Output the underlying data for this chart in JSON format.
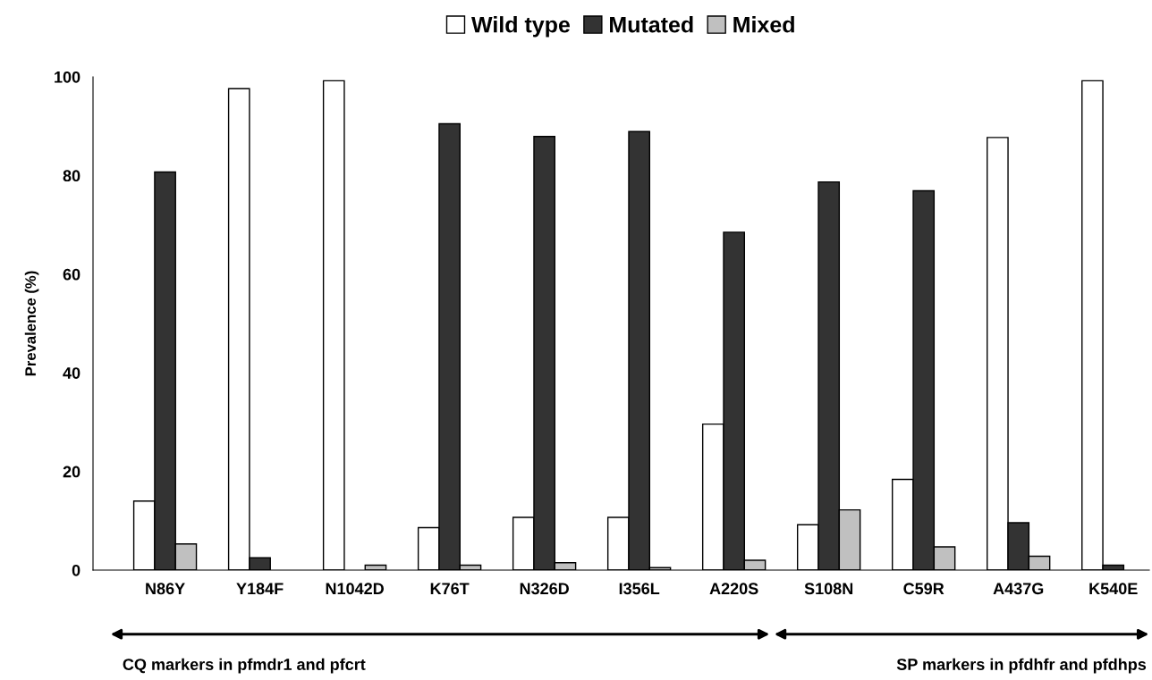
{
  "chart_data": {
    "type": "bar",
    "categories": [
      "N86Y",
      "Y184F",
      "N1042D",
      "K76T",
      "N326D",
      "I356L",
      "A220S",
      "S108N",
      "C59R",
      "A437G",
      "K540E"
    ],
    "series": [
      {
        "name": "Wild type",
        "color": "#ffffff",
        "values": [
          14.0,
          97.6,
          99.2,
          8.6,
          10.7,
          10.7,
          29.6,
          9.2,
          18.4,
          87.7,
          99.2
        ]
      },
      {
        "name": "Mutated",
        "color": "#333333",
        "values": [
          80.7,
          2.5,
          null,
          90.5,
          87.9,
          88.9,
          68.5,
          78.7,
          76.9,
          9.6,
          1.0
        ]
      },
      {
        "name": "Mixed",
        "color": "#c0c0c0",
        "values": [
          5.3,
          null,
          1.0,
          1.0,
          1.5,
          0.5,
          2.0,
          12.2,
          4.7,
          2.8,
          null
        ]
      }
    ],
    "ylabel": "Prevalence (%)",
    "ylim": [
      0,
      100
    ],
    "yticks": [
      0,
      20,
      40,
      60,
      80,
      100
    ],
    "annotations": [
      "CQ markers in pfmdr1 and pfcrt",
      "SP markers in pfdhfr and pfdhps"
    ],
    "legend": "top",
    "grid": false
  }
}
